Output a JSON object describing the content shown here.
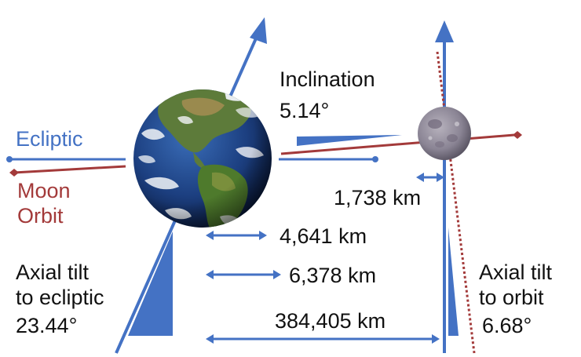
{
  "colors": {
    "ecliptic": "#4472c4",
    "moon_orbit": "#a33a3a",
    "text": "#111111"
  },
  "labels": {
    "ecliptic": "Ecliptic",
    "moon_orbit_line1": "Moon",
    "moon_orbit_line2": "Orbit",
    "inclination_title": "Inclination",
    "inclination_value": "5.14°",
    "moon_radius": "1,738 km",
    "dist_4641": "4,641 km",
    "dist_6378": "6,378 km",
    "dist_384405": "384,405 km",
    "earth_tilt_line1": "Axial tilt",
    "earth_tilt_line2": "to ecliptic",
    "earth_tilt_value": "23.44°",
    "moon_tilt_line1": "Axial tilt",
    "moon_tilt_line2": "to orbit",
    "moon_tilt_value": "6.68°"
  }
}
